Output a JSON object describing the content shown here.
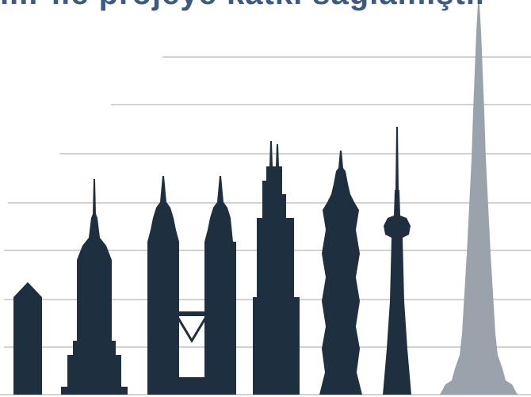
{
  "headline": "...r ile projeye katkı sağlamıştır",
  "palette": {
    "building": "#1e2f40",
    "highlight": "#9aa3ab",
    "gridline": "#d2d2d2",
    "headline": "#3d5a80"
  },
  "buildings": [
    {
      "id": "low-building",
      "icon": "low-tower-silhouette",
      "color": "building"
    },
    {
      "id": "empire-state",
      "icon": "empire-state-silhouette",
      "color": "building"
    },
    {
      "id": "petronas-left",
      "icon": "petronas-tower-silhouette",
      "color": "building"
    },
    {
      "id": "petronas-right",
      "icon": "petronas-tower-silhouette",
      "color": "building"
    },
    {
      "id": "willis-tower",
      "icon": "willis-tower-silhouette",
      "color": "building"
    },
    {
      "id": "taipei-101",
      "icon": "taipei-101-silhouette",
      "color": "building"
    },
    {
      "id": "cn-tower",
      "icon": "cn-tower-silhouette",
      "color": "building"
    },
    {
      "id": "burj-khalifa",
      "icon": "burj-khalifa-silhouette",
      "color": "highlight"
    }
  ]
}
